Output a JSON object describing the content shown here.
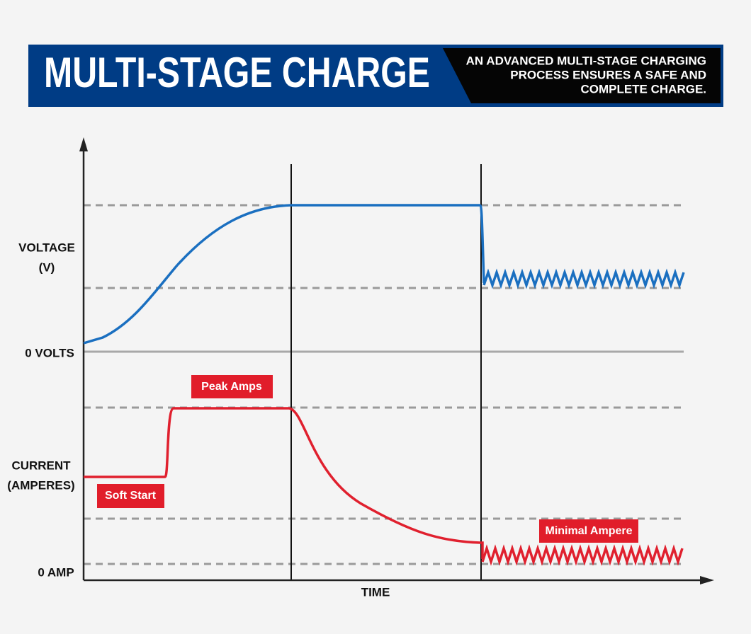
{
  "header": {
    "title": "MULTI-STAGE CHARGE",
    "subtitle_lines": [
      "AN ADVANCED MULTI-STAGE CHARGING",
      "PROCESS ENSURES A SAFE AND",
      "COMPLETE CHARGE."
    ]
  },
  "axis_labels": {
    "voltage": [
      "VOLTAGE",
      "(V)"
    ],
    "zero_volts": "0 VOLTS",
    "current": [
      "CURRENT",
      "(AMPERES)"
    ],
    "zero_amp": "0 AMP",
    "time": "TIME"
  },
  "callouts": {
    "peak": "Peak Amps",
    "soft_start": "Soft Start",
    "minimal": "Minimal Ampere"
  }
}
